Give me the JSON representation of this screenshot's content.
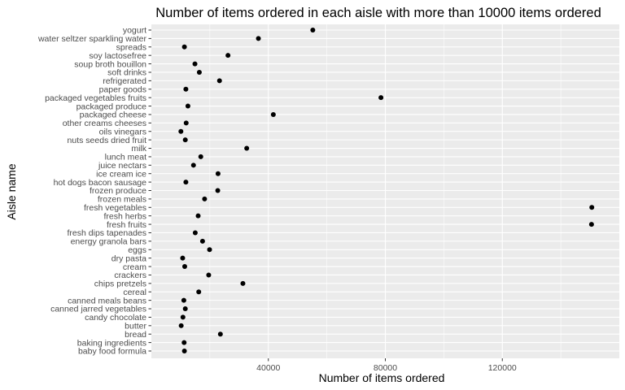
{
  "chart_data": {
    "type": "scatter",
    "title": "Number of items ordered in each aisle with more than 10000 items ordered",
    "xlabel": "Number of items ordered",
    "ylabel": "Aisle name",
    "xlim": [
      0,
      160000
    ],
    "xticks": [
      40000,
      80000,
      120000
    ],
    "xtick_labels": [
      "40000",
      "80000",
      "120000"
    ],
    "grid": true,
    "background": "#ebebeb",
    "grid_color": "#ffffff",
    "point_color": "#000000",
    "points": [
      {
        "aisle": "baby food formula",
        "value": 11300
      },
      {
        "aisle": "baking ingredients",
        "value": 11200
      },
      {
        "aisle": "bread",
        "value": 23600
      },
      {
        "aisle": "butter",
        "value": 10200
      },
      {
        "aisle": "candy chocolate",
        "value": 10800
      },
      {
        "aisle": "canned jarred vegetables",
        "value": 11600
      },
      {
        "aisle": "canned meals beans",
        "value": 11100
      },
      {
        "aisle": "cereal",
        "value": 16200
      },
      {
        "aisle": "chips pretzels",
        "value": 31300
      },
      {
        "aisle": "crackers",
        "value": 19600
      },
      {
        "aisle": "cream",
        "value": 11400
      },
      {
        "aisle": "dry pasta",
        "value": 10700
      },
      {
        "aisle": "eggs",
        "value": 19900
      },
      {
        "aisle": "energy granola bars",
        "value": 17500
      },
      {
        "aisle": "fresh dips tapenades",
        "value": 15000
      },
      {
        "aisle": "fresh fruits",
        "value": 150500
      },
      {
        "aisle": "fresh herbs",
        "value": 16000
      },
      {
        "aisle": "fresh vegetables",
        "value": 150600
      },
      {
        "aisle": "frozen meals",
        "value": 18200
      },
      {
        "aisle": "frozen produce",
        "value": 22700
      },
      {
        "aisle": "hot dogs bacon sausage",
        "value": 11800
      },
      {
        "aisle": "ice cream ice",
        "value": 22800
      },
      {
        "aisle": "juice nectars",
        "value": 14400
      },
      {
        "aisle": "lunch meat",
        "value": 16900
      },
      {
        "aisle": "milk",
        "value": 32600
      },
      {
        "aisle": "nuts seeds dried fruit",
        "value": 11600
      },
      {
        "aisle": "oils vinegars",
        "value": 10100
      },
      {
        "aisle": "other creams cheeses",
        "value": 11900
      },
      {
        "aisle": "packaged cheese",
        "value": 41700
      },
      {
        "aisle": "packaged produce",
        "value": 12500
      },
      {
        "aisle": "packaged vegetables fruits",
        "value": 78500
      },
      {
        "aisle": "paper goods",
        "value": 11800
      },
      {
        "aisle": "refrigerated",
        "value": 23300
      },
      {
        "aisle": "soft drinks",
        "value": 16400
      },
      {
        "aisle": "soup broth bouillon",
        "value": 14900
      },
      {
        "aisle": "soy lactosefree",
        "value": 26200
      },
      {
        "aisle": "spreads",
        "value": 11300
      },
      {
        "aisle": "water seltzer sparkling water",
        "value": 36600
      },
      {
        "aisle": "yogurt",
        "value": 55200
      }
    ]
  }
}
